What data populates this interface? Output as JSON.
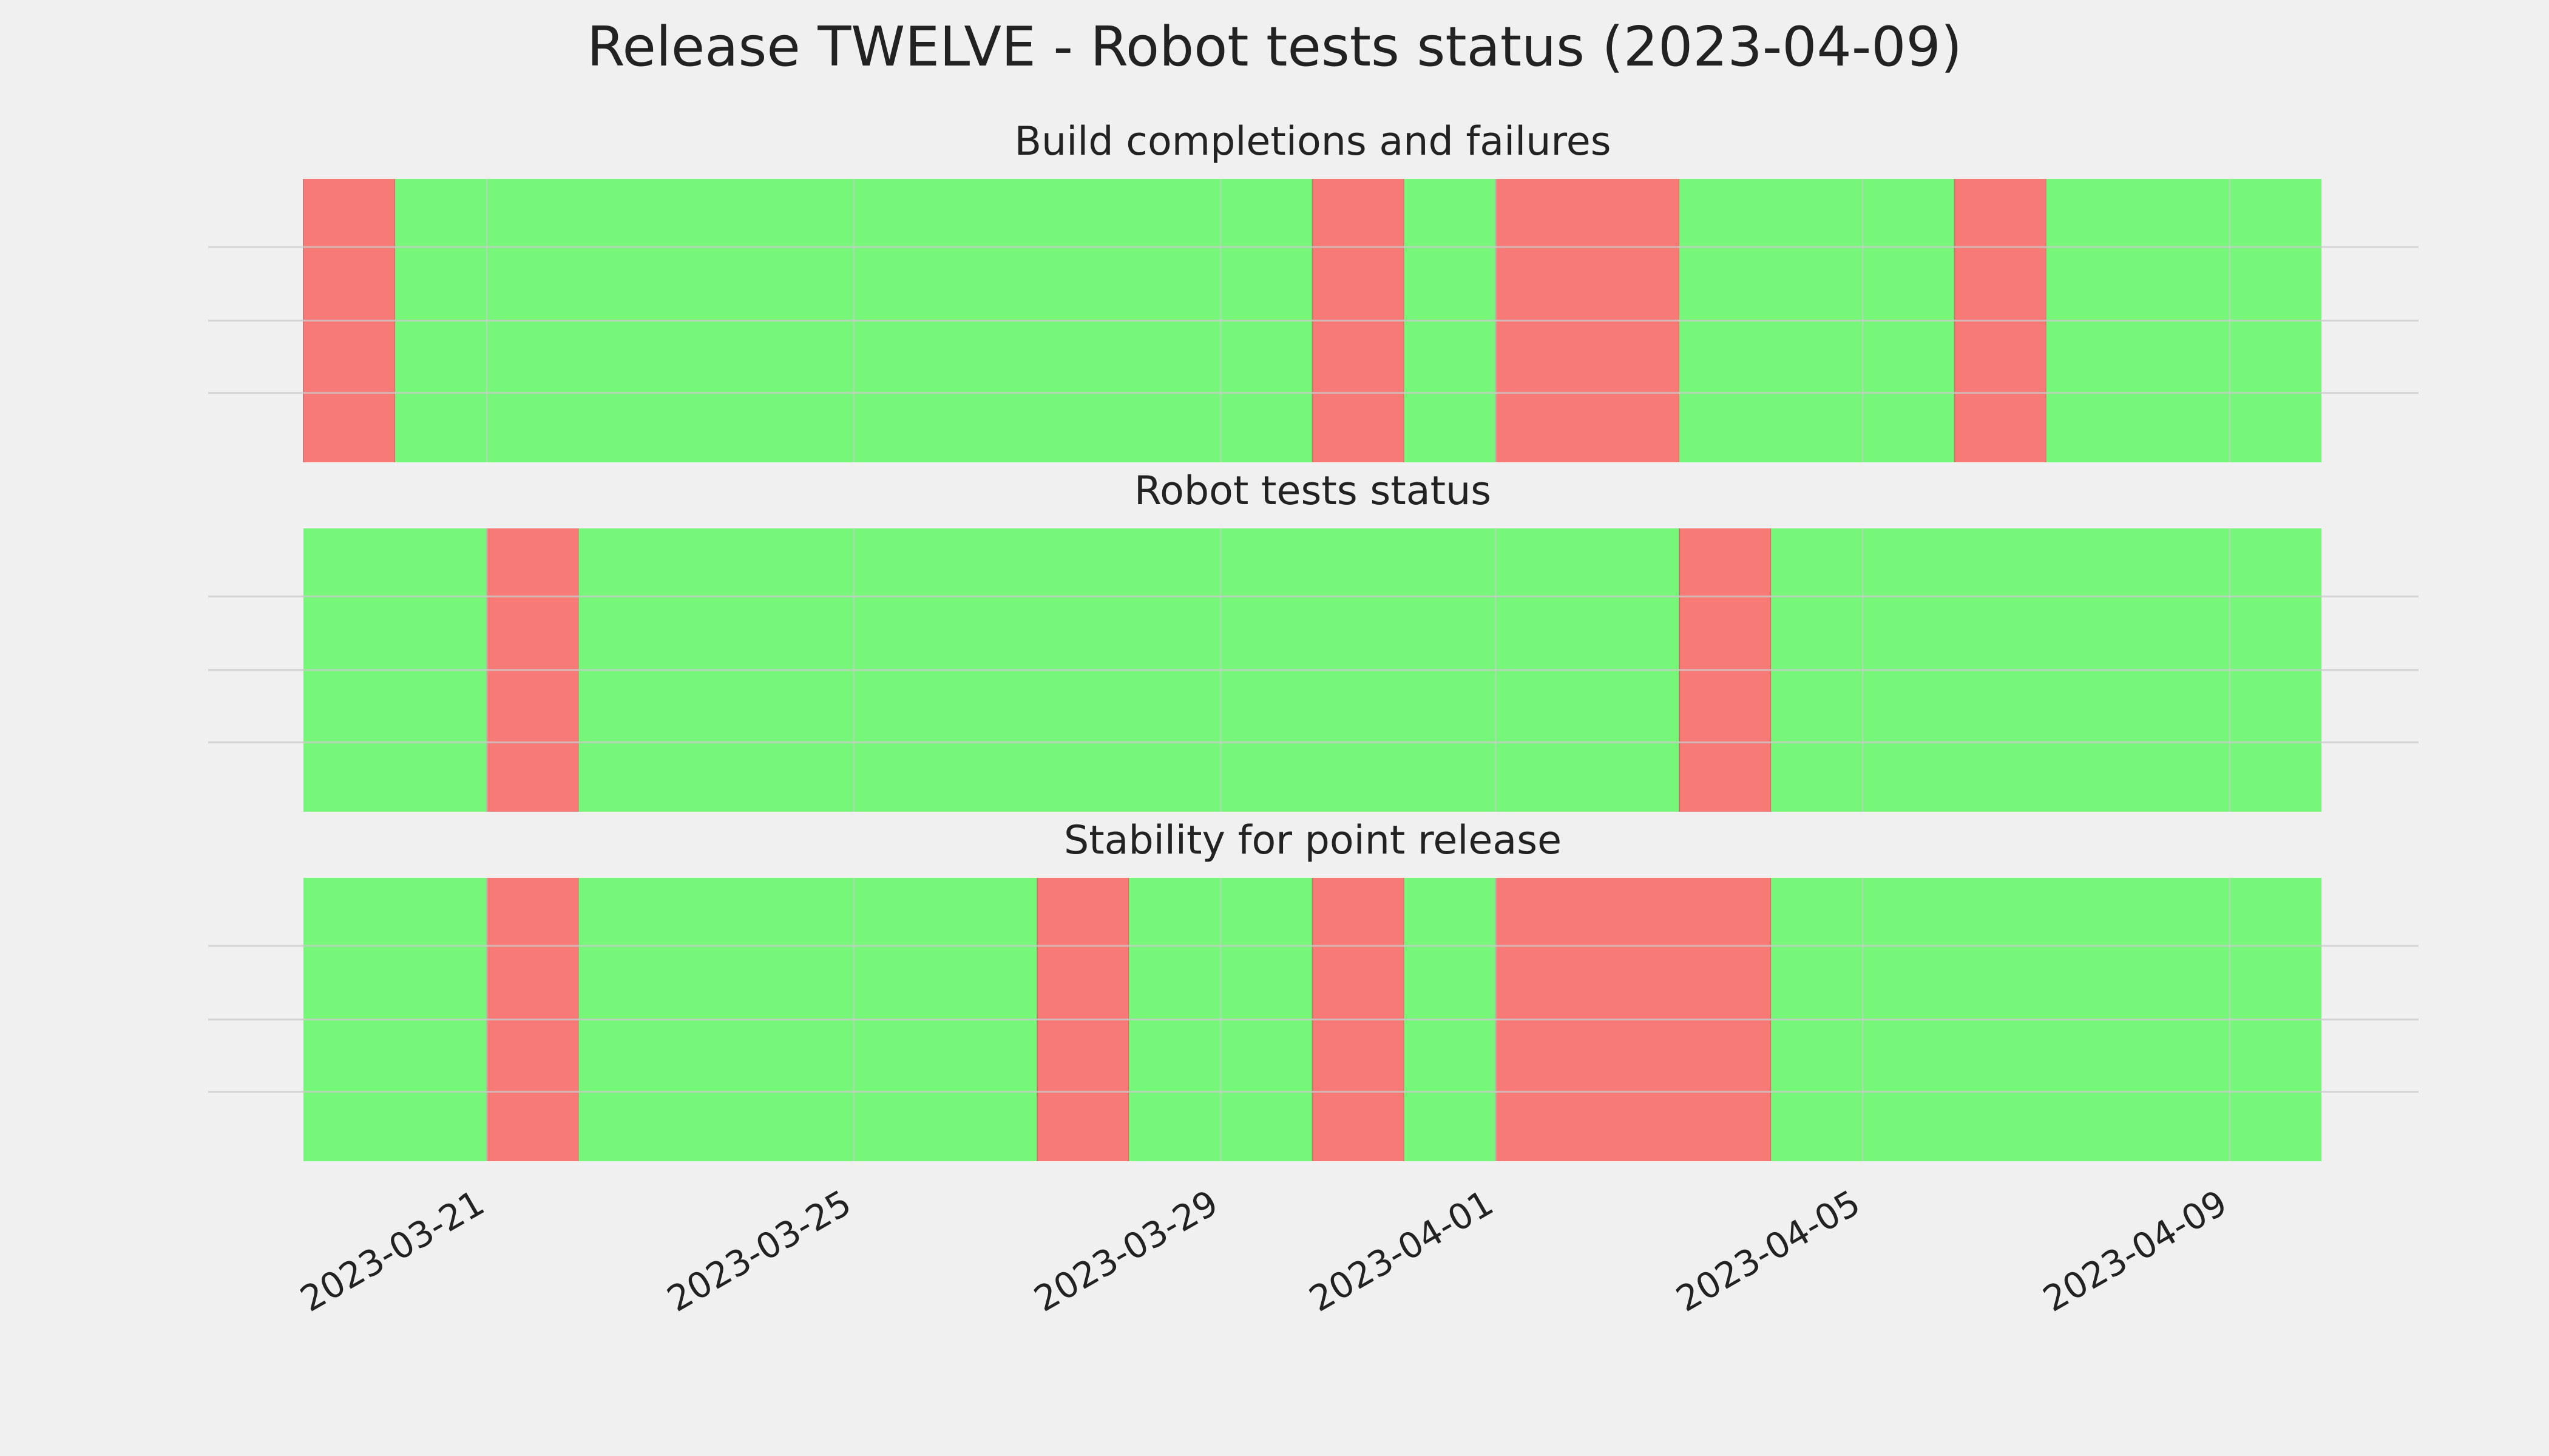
{
  "title": "Release TWELVE - Robot tests status (2023-04-09)",
  "colors": {
    "background": "#f0f0f0",
    "success": "#76f77a",
    "failure": "#f77a76",
    "grid": "#cbcbcb",
    "text": "#222222"
  },
  "chart_data": [
    {
      "type": "timeline",
      "title": "Build completions and failures",
      "x_range": [
        "2023-03-19",
        "2023-04-10"
      ],
      "segments": [
        {
          "start": "2023-03-19",
          "end": "2023-03-20",
          "status": "failure"
        },
        {
          "start": "2023-03-20",
          "end": "2023-03-30",
          "status": "success"
        },
        {
          "start": "2023-03-30",
          "end": "2023-03-31",
          "status": "failure"
        },
        {
          "start": "2023-03-31",
          "end": "2023-04-01",
          "status": "success"
        },
        {
          "start": "2023-04-01",
          "end": "2023-04-03",
          "status": "failure"
        },
        {
          "start": "2023-04-03",
          "end": "2023-04-06",
          "status": "success"
        },
        {
          "start": "2023-04-06",
          "end": "2023-04-07",
          "status": "failure"
        },
        {
          "start": "2023-04-07",
          "end": "2023-04-10",
          "status": "success"
        }
      ]
    },
    {
      "type": "timeline",
      "title": "Robot tests status",
      "x_range": [
        "2023-03-19",
        "2023-04-10"
      ],
      "segments": [
        {
          "start": "2023-03-19",
          "end": "2023-03-21",
          "status": "success"
        },
        {
          "start": "2023-03-21",
          "end": "2023-03-22",
          "status": "failure"
        },
        {
          "start": "2023-03-22",
          "end": "2023-04-03",
          "status": "success"
        },
        {
          "start": "2023-04-03",
          "end": "2023-04-04",
          "status": "failure"
        },
        {
          "start": "2023-04-04",
          "end": "2023-04-10",
          "status": "success"
        }
      ]
    },
    {
      "type": "timeline",
      "title": "Stability for point release",
      "x_range": [
        "2023-03-19",
        "2023-04-10"
      ],
      "segments": [
        {
          "start": "2023-03-19",
          "end": "2023-03-21",
          "status": "success"
        },
        {
          "start": "2023-03-21",
          "end": "2023-03-22",
          "status": "failure"
        },
        {
          "start": "2023-03-22",
          "end": "2023-03-27",
          "status": "success"
        },
        {
          "start": "2023-03-27",
          "end": "2023-03-28",
          "status": "failure"
        },
        {
          "start": "2023-03-28",
          "end": "2023-03-30",
          "status": "success"
        },
        {
          "start": "2023-03-30",
          "end": "2023-03-31",
          "status": "failure"
        },
        {
          "start": "2023-03-31",
          "end": "2023-04-01",
          "status": "success"
        },
        {
          "start": "2023-04-01",
          "end": "2023-04-04",
          "status": "failure"
        },
        {
          "start": "2023-04-04",
          "end": "2023-04-10",
          "status": "success"
        }
      ]
    }
  ],
  "x_ticks": [
    "2023-03-21",
    "2023-03-25",
    "2023-03-29",
    "2023-04-01",
    "2023-04-05",
    "2023-04-09"
  ]
}
